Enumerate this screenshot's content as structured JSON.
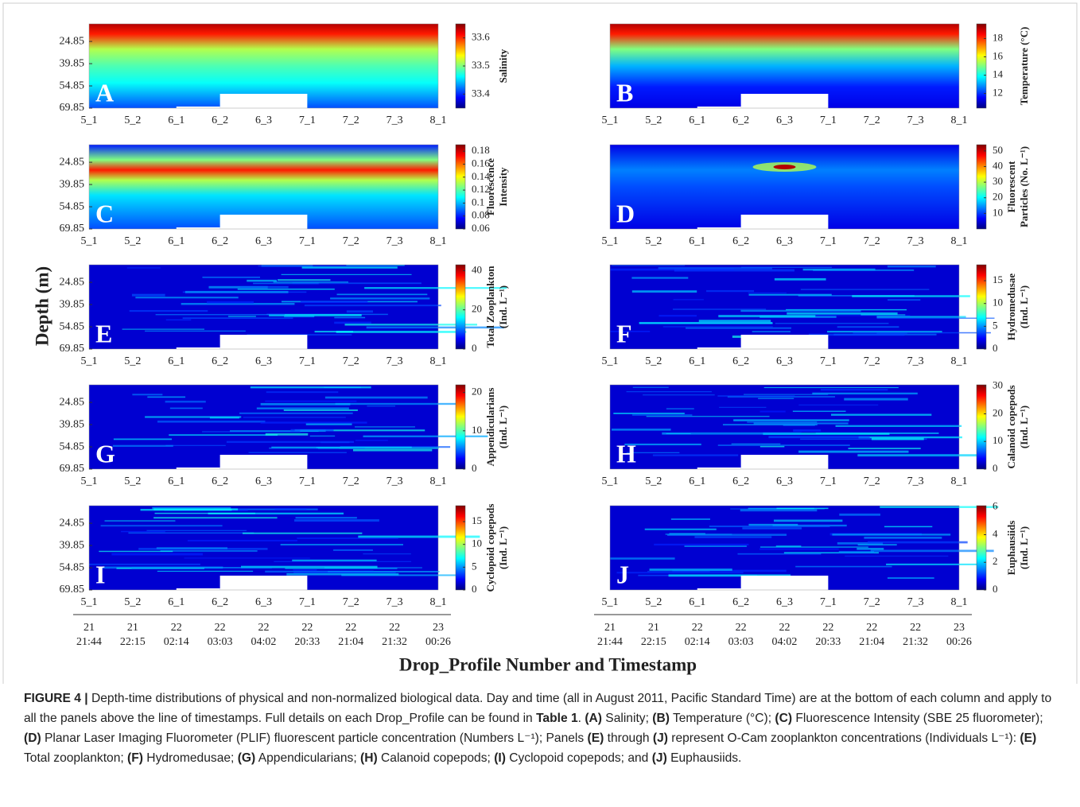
{
  "chart_data": [
    {
      "type": "heatmap",
      "label": "A",
      "colorbar_label": [
        "Salinity"
      ],
      "clim": [
        33.35,
        33.65
      ],
      "cticks": [
        33.4,
        33.5,
        33.6
      ],
      "ylim": [
        13,
        69.85
      ],
      "yticks": [
        24.85,
        39.85,
        54.85,
        69.85
      ],
      "categories": [
        "5_1",
        "5_2",
        "6_1",
        "6_2",
        "6_3",
        "7_1",
        "7_2",
        "7_3",
        "8_1"
      ]
    },
    {
      "type": "heatmap",
      "label": "B",
      "colorbar_label": [
        "Temperature (°C)"
      ],
      "clim": [
        10.4,
        19.6
      ],
      "cticks": [
        12,
        14,
        16,
        18
      ],
      "ylim": [
        13,
        69.85
      ],
      "categories": [
        "5_1",
        "5_2",
        "6_1",
        "6_2",
        "6_3",
        "7_1",
        "7_2",
        "7_3",
        "8_1"
      ]
    },
    {
      "type": "heatmap",
      "label": "C",
      "colorbar_label": [
        "Fluorescence",
        "Intensity"
      ],
      "clim": [
        0.06,
        0.19
      ],
      "cticks": [
        0.06,
        0.08,
        0.1,
        0.12,
        0.14,
        0.16,
        0.18
      ],
      "ylim": [
        13,
        69.85
      ],
      "yticks": [
        24.85,
        39.85,
        54.85,
        69.85
      ],
      "categories": [
        "5_1",
        "5_2",
        "6_1",
        "6_2",
        "6_3",
        "7_1",
        "7_2",
        "7_3",
        "8_1"
      ]
    },
    {
      "type": "heatmap",
      "label": "D",
      "colorbar_label": [
        "Fluorescent",
        "Particles (No. L⁻¹)"
      ],
      "clim": [
        0,
        54
      ],
      "cticks": [
        10,
        20,
        30,
        40,
        50
      ],
      "ylim": [
        13,
        69.85
      ],
      "categories": [
        "5_1",
        "5_2",
        "6_1",
        "6_2",
        "6_3",
        "7_1",
        "7_2",
        "7_3",
        "8_1"
      ]
    },
    {
      "type": "heatmap",
      "label": "E",
      "colorbar_label": [
        "Total Zooplankton",
        "(Ind. L⁻¹)"
      ],
      "clim": [
        0,
        43
      ],
      "cticks": [
        0,
        20,
        40
      ],
      "ylim": [
        13,
        69.85
      ],
      "yticks": [
        24.85,
        39.85,
        54.85,
        69.85
      ],
      "categories": [
        "5_1",
        "5_2",
        "6_1",
        "6_2",
        "6_3",
        "7_1",
        "7_2",
        "7_3",
        "8_1"
      ]
    },
    {
      "type": "heatmap",
      "label": "F",
      "colorbar_label": [
        "Hydromedusae",
        "(Ind. L⁻¹)"
      ],
      "clim": [
        0,
        18.5
      ],
      "cticks": [
        0,
        5,
        10,
        15
      ],
      "ylim": [
        13,
        69.85
      ],
      "categories": [
        "5_1",
        "5_2",
        "6_1",
        "6_2",
        "6_3",
        "7_1",
        "7_2",
        "7_3",
        "8_1"
      ]
    },
    {
      "type": "heatmap",
      "label": "G",
      "colorbar_label": [
        "Appendicularians",
        "(Ind. L⁻¹)"
      ],
      "clim": [
        0,
        22
      ],
      "cticks": [
        0,
        10,
        20
      ],
      "ylim": [
        13,
        69.85
      ],
      "yticks": [
        24.85,
        39.85,
        54.85,
        69.85
      ],
      "categories": [
        "5_1",
        "5_2",
        "6_1",
        "6_2",
        "6_3",
        "7_1",
        "7_2",
        "7_3",
        "8_1"
      ]
    },
    {
      "type": "heatmap",
      "label": "H",
      "colorbar_label": [
        "Calanoid copepods",
        "(Ind. L⁻¹)"
      ],
      "clim": [
        0,
        30.5
      ],
      "cticks": [
        0,
        10,
        20,
        30
      ],
      "ylim": [
        13,
        69.85
      ],
      "categories": [
        "5_1",
        "5_2",
        "6_1",
        "6_2",
        "6_3",
        "7_1",
        "7_2",
        "7_3",
        "8_1"
      ]
    },
    {
      "type": "heatmap",
      "label": "I",
      "colorbar_label": [
        "Cyclopoid copepods",
        "(Ind. L⁻¹)"
      ],
      "clim": [
        0,
        18.5
      ],
      "cticks": [
        0,
        5,
        10,
        15
      ],
      "ylim": [
        13,
        69.85
      ],
      "yticks": [
        24.85,
        39.85,
        54.85,
        69.85
      ],
      "categories": [
        "5_1",
        "5_2",
        "6_1",
        "6_2",
        "6_3",
        "7_1",
        "7_2",
        "7_3",
        "8_1"
      ]
    },
    {
      "type": "heatmap",
      "label": "J",
      "colorbar_label": [
        "Euphausiids",
        "(Ind. L⁻¹)"
      ],
      "clim": [
        0,
        6.1
      ],
      "cticks": [
        0,
        2,
        4,
        6
      ],
      "ylim": [
        13,
        69.85
      ],
      "categories": [
        "5_1",
        "5_2",
        "6_1",
        "6_2",
        "6_3",
        "7_1",
        "7_2",
        "7_3",
        "8_1"
      ]
    }
  ],
  "ylabel": "Depth (m)",
  "xlabel": "Drop_Profile Number and Timestamp",
  "timestamps": [
    {
      "day": "21",
      "time": "21:44"
    },
    {
      "day": "21",
      "time": "22:15"
    },
    {
      "day": "22",
      "time": "02:14"
    },
    {
      "day": "22",
      "time": "03:03"
    },
    {
      "day": "22",
      "time": "04:02"
    },
    {
      "day": "22",
      "time": "20:33"
    },
    {
      "day": "22",
      "time": "21:04"
    },
    {
      "day": "22",
      "time": "21:32"
    },
    {
      "day": "23",
      "time": "00:26"
    }
  ],
  "caption": [
    {
      "text": "FIGURE 4 |",
      "bold": true
    },
    {
      "text": " Depth-time distributions of physical and non-normalized biological data. Day and time (all in August 2011, Pacific Standard Time) are at the bottom of each column and apply to all the panels above the line of timestamps. Full details on each Drop_Profile can be found in ",
      "bold": false
    },
    {
      "text": "Table 1",
      "bold": true
    },
    {
      "text": ". ",
      "bold": false
    },
    {
      "text": "(A)",
      "bold": true
    },
    {
      "text": " Salinity; ",
      "bold": false
    },
    {
      "text": "(B)",
      "bold": true
    },
    {
      "text": " Temperature (°C); ",
      "bold": false
    },
    {
      "text": "(C)",
      "bold": true
    },
    {
      "text": " Fluorescence Intensity (SBE 25 fluorometer); ",
      "bold": false
    },
    {
      "text": "(D)",
      "bold": true
    },
    {
      "text": " Planar Laser Imaging Fluorometer (PLIF) fluorescent particle concentration (Numbers L⁻¹); Panels ",
      "bold": false
    },
    {
      "text": "(E)",
      "bold": true
    },
    {
      "text": " through ",
      "bold": false
    },
    {
      "text": "(J)",
      "bold": true
    },
    {
      "text": " represent O-Cam zooplankton concentrations (Individuals L⁻¹): ",
      "bold": false
    },
    {
      "text": "(E)",
      "bold": true
    },
    {
      "text": " Total zooplankton; ",
      "bold": false
    },
    {
      "text": "(F)",
      "bold": true
    },
    {
      "text": " Hydromedusae; ",
      "bold": false
    },
    {
      "text": "(G)",
      "bold": true
    },
    {
      "text": " Appendicularians; ",
      "bold": false
    },
    {
      "text": "(H)",
      "bold": true
    },
    {
      "text": " Calanoid copepods; ",
      "bold": false
    },
    {
      "text": "(I)",
      "bold": true
    },
    {
      "text": " Cyclopoid copepods; and ",
      "bold": false
    },
    {
      "text": "(J)",
      "bold": true
    },
    {
      "text": " Euphausiids.",
      "bold": false
    }
  ]
}
